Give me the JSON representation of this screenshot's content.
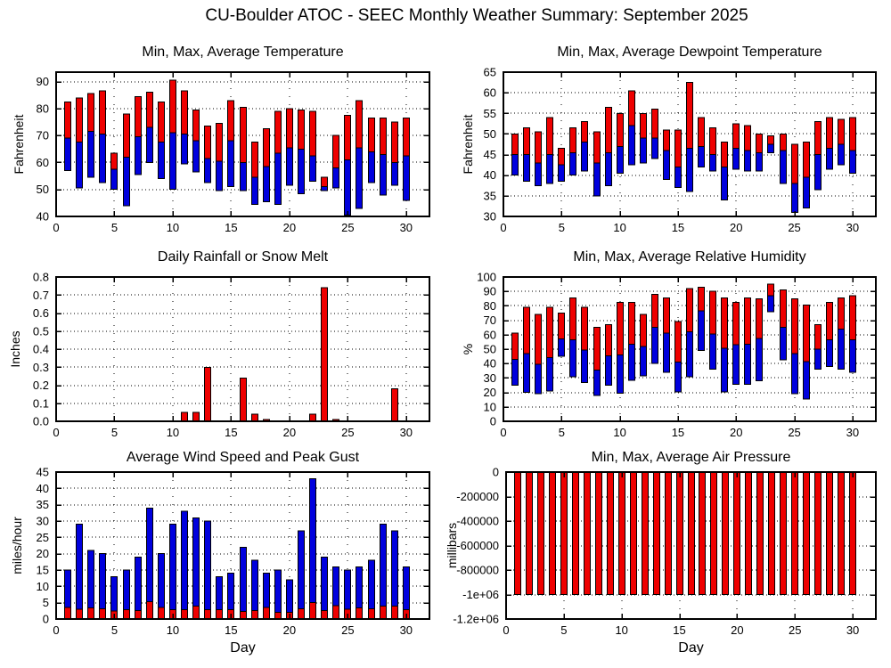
{
  "page": {
    "title": "CU-Boulder ATOC - SEEC Monthly Weather Summary: September 2025"
  },
  "colors": {
    "bar_red": "#ee0000",
    "bar_blue": "#0000dd",
    "axis": "#000000",
    "background": "#ffffff"
  },
  "chart_data": [
    {
      "id": "temperature",
      "type": "bar",
      "kind": "range_min_avg_max",
      "title": "Min, Max, Average Temperature",
      "ylabel": "Fahrenheit",
      "xlabel": "",
      "ylim": [
        40,
        93.5
      ],
      "yticks": [
        40,
        50,
        60,
        70,
        80,
        90
      ],
      "ytick_labels": [
        "40",
        "50",
        "60",
        "70",
        "80",
        "90"
      ],
      "xlim": [
        0,
        32
      ],
      "xticks": [
        0,
        5,
        10,
        15,
        20,
        25,
        30
      ],
      "xtick_labels": [
        "0",
        "5",
        "10",
        "15",
        "20",
        "25",
        "30"
      ],
      "grid": true,
      "x": [
        1,
        2,
        3,
        4,
        5,
        6,
        7,
        8,
        9,
        10,
        11,
        12,
        13,
        14,
        15,
        16,
        17,
        18,
        19,
        20,
        21,
        22,
        23,
        24,
        25,
        26,
        27,
        28,
        29,
        30
      ],
      "series": [
        {
          "name": "min",
          "values": [
            57,
            50.5,
            54.5,
            52.5,
            50,
            44,
            55.5,
            60,
            54,
            50,
            59.5,
            56.5,
            52.5,
            49.5,
            51,
            49.5,
            44.5,
            45.5,
            44.5,
            51.5,
            48.5,
            53,
            49.5,
            50.5,
            40.5,
            43,
            52.5,
            48,
            51.5,
            46
          ]
        },
        {
          "name": "average",
          "values": [
            69,
            67.5,
            71.5,
            70.5,
            57.5,
            62,
            69.5,
            73,
            67.5,
            71,
            70.5,
            68,
            61.5,
            60.5,
            68,
            60,
            54.5,
            58.5,
            63.5,
            65.5,
            65,
            62.5,
            51,
            58,
            61,
            65.5,
            64,
            63,
            60,
            62.5
          ]
        },
        {
          "name": "max",
          "values": [
            82.5,
            84,
            85.5,
            86.5,
            63.5,
            78,
            84.5,
            86,
            82.5,
            90.5,
            86.5,
            79.5,
            73.5,
            74.5,
            83,
            80.5,
            67.5,
            72.5,
            79,
            80,
            79.5,
            79,
            54.5,
            70,
            77.5,
            83,
            76.5,
            76.5,
            75,
            76.5
          ]
        }
      ]
    },
    {
      "id": "dewpoint",
      "type": "bar",
      "kind": "range_min_avg_max",
      "title": "Min, Max, Average Dewpoint Temperature",
      "ylabel": "Fahrenheit",
      "xlabel": "",
      "ylim": [
        30,
        65
      ],
      "yticks": [
        30,
        35,
        40,
        45,
        50,
        55,
        60,
        65
      ],
      "ytick_labels": [
        "30",
        "35",
        "40",
        "45",
        "50",
        "55",
        "60",
        "65"
      ],
      "xlim": [
        0,
        32
      ],
      "xticks": [
        0,
        5,
        10,
        15,
        20,
        25,
        30
      ],
      "xtick_labels": [
        "0",
        "5",
        "10",
        "15",
        "20",
        "25",
        "30"
      ],
      "grid": true,
      "x": [
        1,
        2,
        3,
        4,
        5,
        6,
        7,
        8,
        9,
        10,
        11,
        12,
        13,
        14,
        15,
        16,
        17,
        18,
        19,
        20,
        21,
        22,
        23,
        24,
        25,
        26,
        27,
        28,
        29,
        30
      ],
      "series": [
        {
          "name": "min",
          "values": [
            40,
            38.5,
            37.5,
            38,
            38.5,
            40,
            41,
            35,
            37.5,
            40.5,
            42.5,
            43,
            44,
            39,
            37,
            36,
            42,
            41,
            34,
            41.5,
            41,
            41,
            45.5,
            38,
            31,
            32,
            36.5,
            41.5,
            42.5,
            40.5
          ]
        },
        {
          "name": "average",
          "values": [
            45,
            45,
            43,
            45,
            42.5,
            45.5,
            48,
            43,
            45.5,
            47,
            52,
            49,
            49,
            46,
            42,
            46.5,
            47,
            45,
            42,
            46.5,
            46,
            45.5,
            47.5,
            46,
            38,
            39.5,
            45,
            46.5,
            47.5,
            46
          ]
        },
        {
          "name": "max",
          "values": [
            50,
            51.5,
            50.5,
            54,
            46.5,
            51.5,
            53,
            50.5,
            56.5,
            55,
            60.5,
            55,
            56,
            51,
            51,
            62.5,
            54,
            51.5,
            48,
            52.5,
            52,
            50,
            49.5,
            50,
            47.5,
            48,
            53,
            54,
            53.5,
            54
          ]
        }
      ]
    },
    {
      "id": "rainfall",
      "type": "bar",
      "kind": "single_bar",
      "title": "Daily Rainfall or Snow Melt",
      "ylabel": "Inches",
      "xlabel": "",
      "ylim": [
        0,
        0.8
      ],
      "yticks": [
        0,
        0.1,
        0.2,
        0.3,
        0.4,
        0.5,
        0.6,
        0.7,
        0.8
      ],
      "ytick_labels": [
        "0.0",
        "0.1",
        "0.2",
        "0.3",
        "0.4",
        "0.5",
        "0.6",
        "0.7",
        "0.8"
      ],
      "xlim": [
        0,
        32
      ],
      "xticks": [
        0,
        5,
        10,
        15,
        20,
        25,
        30
      ],
      "xtick_labels": [
        "0",
        "5",
        "10",
        "15",
        "20",
        "25",
        "30"
      ],
      "grid": true,
      "x": [
        1,
        2,
        3,
        4,
        5,
        6,
        7,
        8,
        9,
        10,
        11,
        12,
        13,
        14,
        15,
        16,
        17,
        18,
        19,
        20,
        21,
        22,
        23,
        24,
        25,
        26,
        27,
        28,
        29,
        30
      ],
      "series": [
        {
          "name": "value",
          "values": [
            0,
            0,
            0,
            0,
            0,
            0,
            0,
            0,
            0,
            0,
            0.05,
            0.05,
            0.3,
            0,
            0,
            0.24,
            0.04,
            0.01,
            0,
            0,
            0,
            0.04,
            0.74,
            0.01,
            0,
            0,
            0,
            0,
            0.18,
            0
          ]
        }
      ]
    },
    {
      "id": "humidity",
      "type": "bar",
      "kind": "range_min_avg_max",
      "title": "Min, Max, Average Relative Humidity",
      "ylabel": "%",
      "xlabel": "",
      "ylim": [
        0,
        100
      ],
      "yticks": [
        0,
        10,
        20,
        30,
        40,
        50,
        60,
        70,
        80,
        90,
        100
      ],
      "ytick_labels": [
        "0",
        "10",
        "20",
        "30",
        "40",
        "50",
        "60",
        "70",
        "80",
        "90",
        "100"
      ],
      "xlim": [
        0,
        32
      ],
      "xticks": [
        0,
        5,
        10,
        15,
        20,
        25,
        30
      ],
      "xtick_labels": [
        "0",
        "5",
        "10",
        "15",
        "20",
        "25",
        "30"
      ],
      "grid": true,
      "x": [
        1,
        2,
        3,
        4,
        5,
        6,
        7,
        8,
        9,
        10,
        11,
        12,
        13,
        14,
        15,
        16,
        17,
        18,
        19,
        20,
        21,
        22,
        23,
        24,
        25,
        26,
        27,
        28,
        29,
        30
      ],
      "series": [
        {
          "name": "min",
          "values": [
            25,
            20,
            19,
            21,
            45,
            31,
            27,
            18,
            25,
            19.5,
            28.5,
            31.5,
            40,
            34,
            20.5,
            31,
            49,
            36,
            20.5,
            25.5,
            25.5,
            28,
            76,
            42.5,
            19,
            15.5,
            36,
            38,
            36,
            34
          ]
        },
        {
          "name": "average",
          "values": [
            43,
            47,
            39.5,
            44,
            57,
            56.5,
            49.5,
            35.5,
            45.5,
            46,
            53.5,
            52,
            65,
            61,
            41,
            62,
            76.5,
            60.5,
            50.5,
            53,
            53.5,
            57.5,
            87,
            65,
            47,
            41.5,
            50,
            56.5,
            64,
            56.5
          ]
        },
        {
          "name": "max",
          "values": [
            61,
            79,
            74,
            79,
            75,
            85.5,
            79,
            65,
            67,
            82.5,
            82.5,
            74,
            88,
            85.5,
            69,
            92,
            93,
            90,
            85.5,
            82.5,
            85.5,
            85,
            95,
            91,
            85,
            80.5,
            67,
            82.5,
            85.5,
            87
          ]
        }
      ]
    },
    {
      "id": "wind",
      "type": "bar",
      "kind": "avg_plus_gust",
      "title": "Average Wind Speed and Peak Gust",
      "ylabel": "miles/hour",
      "xlabel": "Day",
      "ylim": [
        0,
        45
      ],
      "yticks": [
        0,
        5,
        10,
        15,
        20,
        25,
        30,
        35,
        40,
        45
      ],
      "ytick_labels": [
        "0",
        "5",
        "10",
        "15",
        "20",
        "25",
        "30",
        "35",
        "40",
        "45"
      ],
      "xlim": [
        0,
        32
      ],
      "xticks": [
        0,
        5,
        10,
        15,
        20,
        25,
        30
      ],
      "xtick_labels": [
        "0",
        "5",
        "10",
        "15",
        "20",
        "25",
        "30"
      ],
      "grid": true,
      "x": [
        1,
        2,
        3,
        4,
        5,
        6,
        7,
        8,
        9,
        10,
        11,
        12,
        13,
        14,
        15,
        16,
        17,
        18,
        19,
        20,
        21,
        22,
        23,
        24,
        25,
        26,
        27,
        28,
        29,
        30
      ],
      "series": [
        {
          "name": "average",
          "values": [
            3.5,
            3,
            3.4,
            3.1,
            2.5,
            2.8,
            2.6,
            5.3,
            3.6,
            2.9,
            2.9,
            3.9,
            2.9,
            2.8,
            2.8,
            2.3,
            2.6,
            3.6,
            2,
            2,
            3.1,
            5.1,
            2.6,
            4.1,
            3,
            3.4,
            3.2,
            3.9,
            3.9,
            2.9
          ]
        },
        {
          "name": "gust",
          "values": [
            15,
            29,
            21,
            20,
            13,
            15,
            19,
            34,
            20,
            29,
            33,
            31,
            30,
            13,
            14,
            22,
            18,
            14,
            15,
            12,
            27,
            43,
            19,
            16,
            15,
            16,
            18,
            29,
            27,
            16
          ]
        }
      ]
    },
    {
      "id": "pressure",
      "type": "bar",
      "kind": "single_bar",
      "title": "Min, Max, Average Air Pressure",
      "ylabel": "millibars",
      "xlabel": "Day",
      "ylim": [
        -1200000,
        0
      ],
      "yticks": [
        0,
        -200000,
        -400000,
        -600000,
        -800000,
        -1000000,
        -1200000
      ],
      "ytick_labels": [
        "0",
        "-200000",
        "-400000",
        "-600000",
        "-800000",
        "-1e+06",
        "-1.2e+06"
      ],
      "xlim": [
        0,
        32
      ],
      "xticks": [
        0,
        5,
        10,
        15,
        20,
        25,
        30
      ],
      "xtick_labels": [
        "0",
        "5",
        "10",
        "15",
        "20",
        "25",
        "30"
      ],
      "grid": true,
      "x": [
        1,
        2,
        3,
        4,
        5,
        6,
        7,
        8,
        9,
        10,
        11,
        12,
        13,
        14,
        15,
        16,
        17,
        18,
        19,
        20,
        21,
        22,
        23,
        24,
        25,
        26,
        27,
        28,
        29,
        30
      ],
      "series": [
        {
          "name": "value",
          "values": [
            -1000000,
            -1000000,
            -1000000,
            -1000000,
            -1000000,
            -1000000,
            -1000000,
            -1000000,
            -1000000,
            -1000000,
            -1000000,
            -1000000,
            -1000000,
            -1000000,
            -1000000,
            -1000000,
            -1000000,
            -1000000,
            -1000000,
            -1000000,
            -1000000,
            -1000000,
            -1000000,
            -1000000,
            -1000000,
            -1000000,
            -1000000,
            -1000000,
            -1000000,
            -1000000
          ]
        }
      ]
    }
  ]
}
